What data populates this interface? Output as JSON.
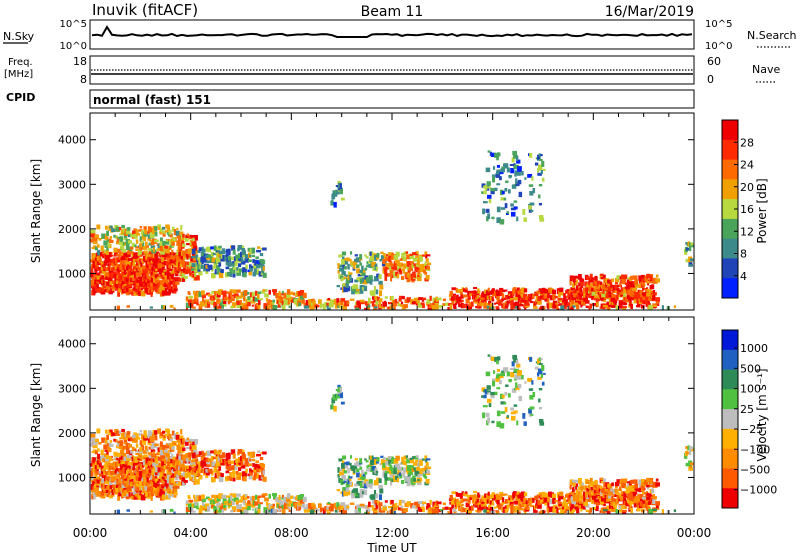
{
  "header": {
    "site": "Inuvik (fitACF)",
    "beam": "Beam 11",
    "date": "16/Mar/2019"
  },
  "panels": {
    "nsky": {
      "label": "N.Sky",
      "left_ticks": [
        "10^5",
        "10^0"
      ],
      "right_ticks": [
        "10^5",
        "10^0"
      ],
      "right_label": "N.Search"
    },
    "freq": {
      "label_line1": "Freq.",
      "label_line2": "[MHz]",
      "left_ticks": [
        "18",
        "8"
      ],
      "right_ticks": [
        "60",
        "0"
      ],
      "right_label": "Nave"
    },
    "cpid": {
      "label": "CPID",
      "text": "normal (fast) 151"
    }
  },
  "colors": {
    "power": [
      "#0020ff",
      "#1f44b8",
      "#3d8a8a",
      "#4aa55a",
      "#b8d840",
      "#f0a000",
      "#ff6a00",
      "#ff2a00",
      "#ee0000"
    ],
    "velocity": [
      "#ee0000",
      "#ff5a00",
      "#ff8c00",
      "#ffb000",
      "#bdbdbd",
      "#50c040",
      "#2e8b57",
      "#2060c0",
      "#0018d8"
    ]
  },
  "chart_data": [
    {
      "type": "heatmap",
      "name": "power",
      "ylabel": "Slant Range [km]",
      "xlabel": "",
      "ylim": [
        180,
        4600
      ],
      "yticks": [
        "1000",
        "2000",
        "3000",
        "4000"
      ],
      "colorbar": {
        "label": "Power [dB]",
        "range": [
          0,
          32
        ],
        "tick_labels": [
          "4",
          "8",
          "12",
          "16",
          "20",
          "24",
          "28"
        ]
      }
    },
    {
      "type": "heatmap",
      "name": "velocity",
      "ylabel": "Slant Range [km]",
      "xlabel": "Time UT",
      "ylim": [
        180,
        4600
      ],
      "yticks": [
        "1000",
        "2000",
        "3000",
        "4000"
      ],
      "xtick_labels": [
        "00:00",
        "04:00",
        "08:00",
        "12:00",
        "16:00",
        "20:00",
        "00:00"
      ],
      "colorbar": {
        "label": "Velocity [m s⁻¹]",
        "tick_labels": [
          "1000",
          "500",
          "100",
          "25",
          "−25",
          "−100",
          "−500",
          "−1000"
        ]
      }
    }
  ]
}
